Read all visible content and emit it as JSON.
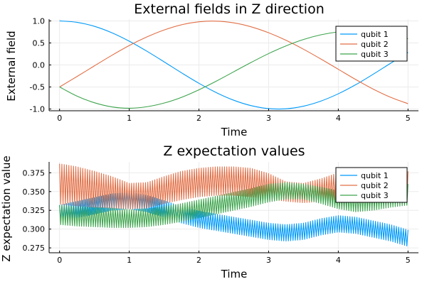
{
  "colors": {
    "qubit1": "#009AFA",
    "qubit2": "#E26F46",
    "qubit3": "#3DA44D",
    "grid": "#ebebeb",
    "axis": "#000000",
    "legend_border": "#000000"
  },
  "chart_data": [
    {
      "type": "line",
      "title": "External fields in Z direction",
      "xlabel": "Time",
      "ylabel": "External field",
      "xlim": [
        -0.15,
        5.15
      ],
      "ylim": [
        -1.04,
        1.04
      ],
      "xticks": [
        0,
        1,
        2,
        3,
        4,
        5
      ],
      "xtick_labels": [
        "0",
        "1",
        "2",
        "3",
        "4",
        "5"
      ],
      "yticks": [
        -1.0,
        -0.5,
        0.0,
        0.5,
        1.0
      ],
      "ytick_labels": [
        "-1.0",
        "-0.5",
        "0.0",
        "0.5",
        "1.0"
      ],
      "grid": true,
      "legend_position": "top-right",
      "x": [
        0,
        0.25,
        0.5,
        0.75,
        1,
        1.25,
        1.5,
        1.75,
        2,
        2.25,
        2.5,
        2.75,
        3,
        3.25,
        3.5,
        3.75,
        4,
        4.25,
        4.5,
        4.75,
        5
      ],
      "series": [
        {
          "name": "qubit 1",
          "values": [
            1.0,
            0.969,
            0.878,
            0.732,
            0.54,
            0.315,
            0.071,
            -0.178,
            -0.416,
            -0.628,
            -0.801,
            -0.924,
            -0.99,
            -0.994,
            -0.936,
            -0.82,
            -0.654,
            -0.448,
            -0.211,
            0.038,
            0.284
          ]
        },
        {
          "name": "qubit 2",
          "values": [
            -0.5,
            -0.262,
            -0.02,
            0.219,
            0.442,
            0.634,
            0.794,
            0.913,
            0.98,
            0.995,
            0.956,
            0.866,
            0.731,
            0.56,
            0.358,
            0.135,
            -0.098,
            -0.331,
            -0.548,
            -0.734,
            -0.879
          ]
        },
        {
          "name": "qubit 3",
          "values": [
            -0.5,
            -0.707,
            -0.858,
            -0.952,
            -0.982,
            -0.949,
            -0.865,
            -0.735,
            -0.564,
            -0.367,
            -0.154,
            0.058,
            0.259,
            0.434,
            0.578,
            0.685,
            0.752,
            0.779,
            0.759,
            0.696,
            0.595
          ]
        }
      ]
    },
    {
      "type": "line",
      "title": "Z expectation values",
      "xlabel": "Time",
      "ylabel": "Z expectation value",
      "xlim": [
        -0.15,
        5.15
      ],
      "ylim": [
        0.2685,
        0.3895
      ],
      "xticks": [
        0,
        1,
        2,
        3,
        4,
        5
      ],
      "xtick_labels": [
        "0",
        "1",
        "2",
        "3",
        "4",
        "5"
      ],
      "yticks": [
        0.275,
        0.3,
        0.325,
        0.35,
        0.375
      ],
      "ytick_labels": [
        "0.275",
        "0.300",
        "0.325",
        "0.350",
        "0.375"
      ],
      "grid": true,
      "legend_position": "top-right",
      "oscillation_cycles": 150,
      "x": [
        0,
        0.25,
        0.5,
        0.75,
        1,
        1.25,
        1.5,
        1.75,
        2,
        2.25,
        2.5,
        2.75,
        3,
        3.25,
        3.5,
        3.75,
        4,
        4.25,
        4.5,
        4.75,
        5
      ],
      "series": [
        {
          "name": "qubit 1",
          "center": [
            0.322,
            0.326,
            0.331,
            0.336,
            0.338,
            0.334,
            0.327,
            0.319,
            0.313,
            0.309,
            0.305,
            0.301,
            0.297,
            0.295,
            0.297,
            0.303,
            0.307,
            0.305,
            0.3,
            0.295,
            0.288
          ],
          "amplitude": [
            0.01,
            0.011,
            0.011,
            0.011,
            0.011,
            0.011,
            0.011,
            0.011,
            0.011,
            0.011,
            0.011,
            0.011,
            0.011,
            0.011,
            0.011,
            0.011,
            0.011,
            0.011,
            0.011,
            0.011,
            0.011
          ]
        },
        {
          "name": "qubit 2",
          "center": [
            0.36,
            0.357,
            0.353,
            0.349,
            0.344,
            0.345,
            0.352,
            0.358,
            0.362,
            0.364,
            0.364,
            0.362,
            0.357,
            0.35,
            0.348,
            0.352,
            0.357,
            0.358,
            0.357,
            0.357,
            0.356
          ],
          "amplitude": [
            0.027,
            0.026,
            0.024,
            0.021,
            0.017,
            0.017,
            0.018,
            0.019,
            0.019,
            0.019,
            0.019,
            0.019,
            0.017,
            0.013,
            0.013,
            0.015,
            0.018,
            0.02,
            0.021,
            0.021,
            0.021
          ]
        },
        {
          "name": "qubit 3",
          "center": [
            0.319,
            0.317,
            0.316,
            0.315,
            0.314,
            0.315,
            0.318,
            0.322,
            0.327,
            0.332,
            0.337,
            0.342,
            0.348,
            0.351,
            0.35,
            0.345,
            0.339,
            0.336,
            0.339,
            0.343,
            0.346
          ],
          "amplitude": [
            0.013,
            0.013,
            0.013,
            0.013,
            0.012,
            0.012,
            0.012,
            0.012,
            0.012,
            0.012,
            0.012,
            0.012,
            0.012,
            0.011,
            0.01,
            0.011,
            0.012,
            0.013,
            0.014,
            0.014,
            0.014
          ]
        }
      ]
    }
  ]
}
